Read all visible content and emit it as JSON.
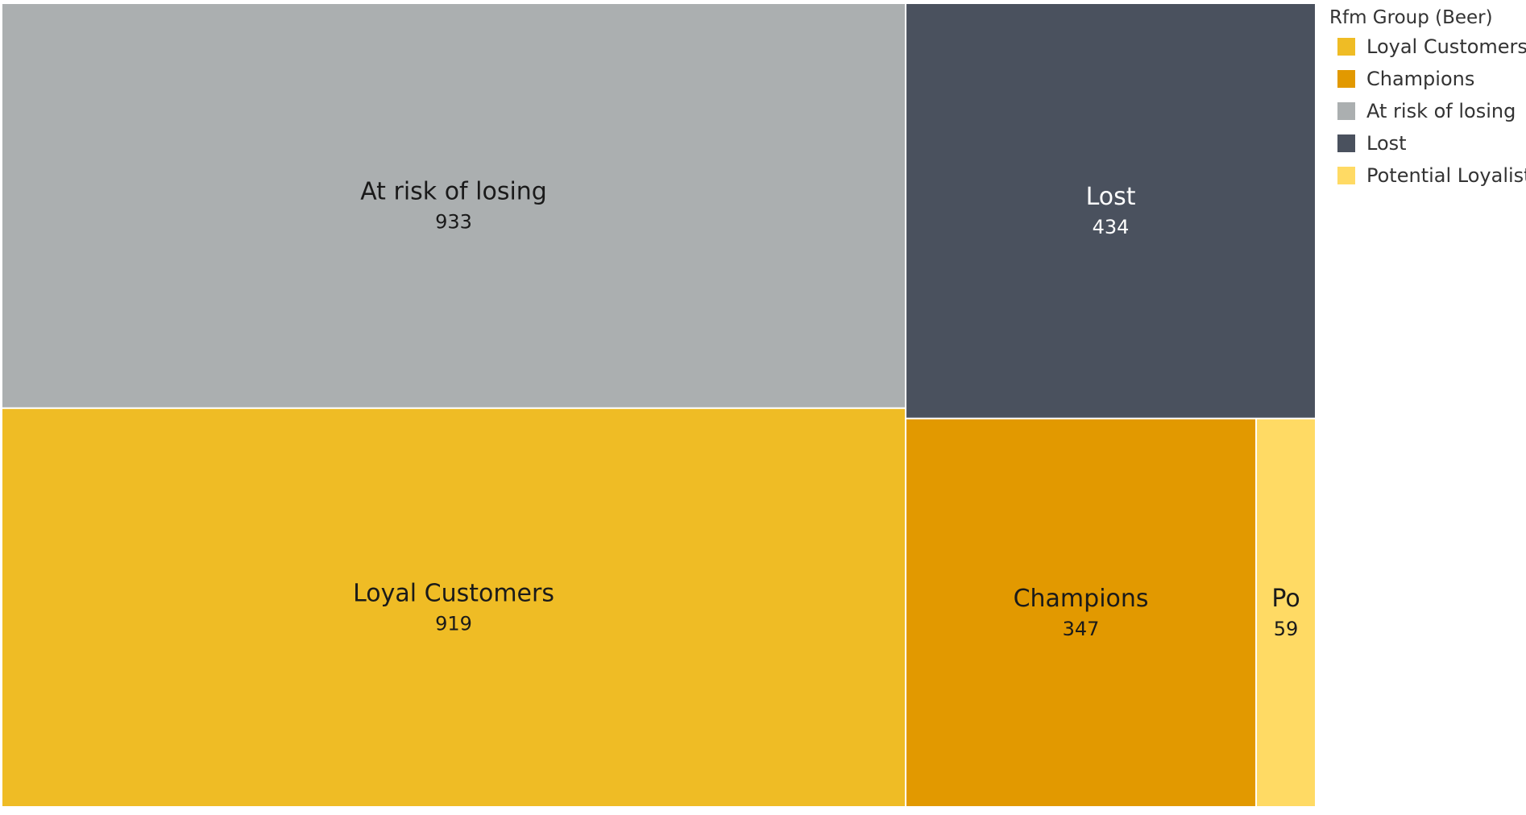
{
  "chart_data": {
    "type": "treemap",
    "title": "",
    "legend_title": "Rfm Group (Beer)",
    "legend_position": "right",
    "legend_entries": [
      {
        "name": "Loyal Customers",
        "color": "#EFBC25"
      },
      {
        "name": "Champions",
        "color": "#E29900"
      },
      {
        "name": "At risk of losing",
        "color": "#ABAFB0"
      },
      {
        "name": "Lost",
        "color": "#4A515E"
      },
      {
        "name": "Potential Loyalist",
        "color": "#FFDA64"
      }
    ],
    "tiles": [
      {
        "name": "At risk of losing",
        "label": "At risk of losing",
        "value": 933,
        "color": "#ABAFB0",
        "text_color": "#1a1a1a"
      },
      {
        "name": "Loyal Customers",
        "label": "Loyal Customers",
        "value": 919,
        "color": "#EFBC25",
        "text_color": "#1a1a1a"
      },
      {
        "name": "Lost",
        "label": "Lost",
        "value": 434,
        "color": "#4A515E",
        "text_color": "#ffffff"
      },
      {
        "name": "Champions",
        "label": "Champions",
        "value": 347,
        "color": "#E29900",
        "text_color": "#1a1a1a"
      },
      {
        "name": "Potential Loyalist",
        "label": "Po",
        "value": 59,
        "color": "#FFDA64",
        "text_color": "#1a1a1a"
      }
    ]
  }
}
